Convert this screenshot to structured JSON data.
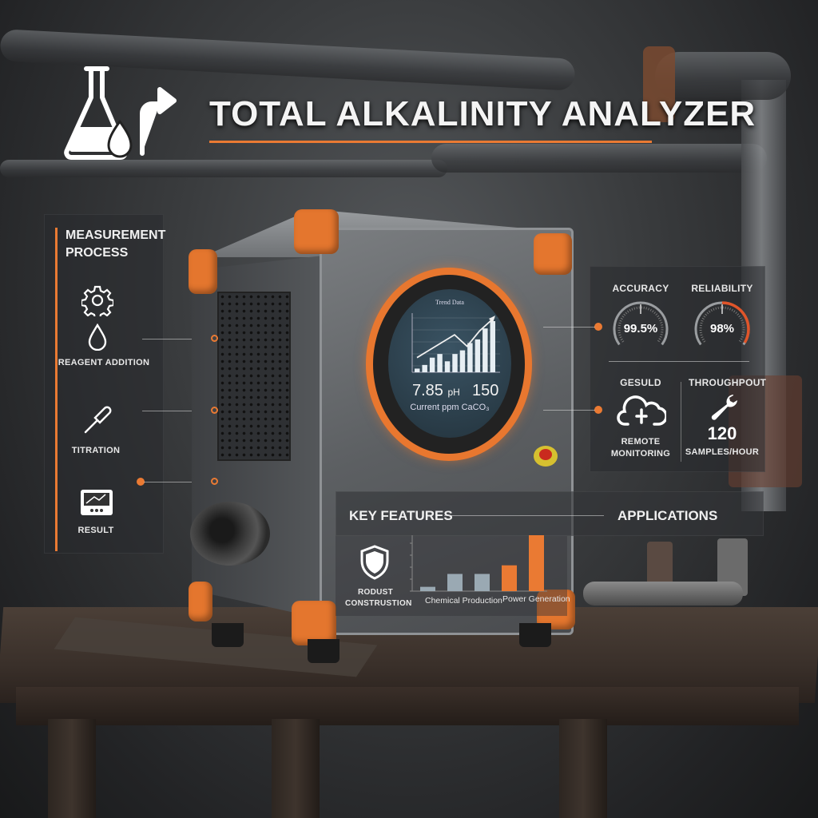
{
  "title": "TOTAL ALKALINITY ANALYZER",
  "colors": {
    "accent": "#ea7a33",
    "bar_gray": "#9aa9b3",
    "panel": "rgba(40,42,45,0.55)"
  },
  "process": {
    "heading_line1": "MEASUREMENT",
    "heading_line2": "PROCESS",
    "steps": [
      {
        "icon": "gear-icon",
        "label": ""
      },
      {
        "icon": "droplet-icon",
        "label": "REAGENT ADDITION"
      },
      {
        "icon": "pipette-icon",
        "label": "TITRATION"
      },
      {
        "icon": "monitor-icon",
        "label": "RESULT"
      }
    ]
  },
  "screen": {
    "title": "Trend Data",
    "ph_value": "7.85",
    "ph_unit": "pH",
    "ppm_value": "150",
    "caption": "Current ppm CaCO₃",
    "bars": [
      1,
      2,
      4,
      5,
      3,
      5,
      6,
      8,
      9,
      12,
      14
    ],
    "trend": [
      3,
      5,
      7,
      9,
      6,
      10,
      13
    ]
  },
  "metrics": {
    "accuracy": {
      "label": "ACCURACY",
      "value": "99.5%",
      "level": 0.995
    },
    "reliability": {
      "label": "RELIABILITY",
      "value": "98%",
      "level": 0.98
    },
    "result": {
      "label": "GESULD",
      "caption_line1": "REMOTE",
      "caption_line2": "MONITORING",
      "icon": "cloud-icon"
    },
    "throughput": {
      "label": "THROUGHPOUT",
      "value": "120",
      "unit": "SAMPLES/HOUR",
      "icon": "wrench-icon"
    }
  },
  "features": {
    "heading": "KEY FEATURES",
    "applications_heading": "APPLICATIONS",
    "item_line1": "RODUST",
    "item_line2": "CONSTRUSTION",
    "chart": {
      "type": "bar",
      "categories": [
        "Chemical Production",
        "Power Generation"
      ],
      "values": [
        1,
        4,
        4,
        6,
        13
      ],
      "bar_colors": [
        "#9aa9b3",
        "#9aa9b3",
        "#9aa9b3",
        "#ea7a33",
        "#ea7a33"
      ]
    }
  }
}
